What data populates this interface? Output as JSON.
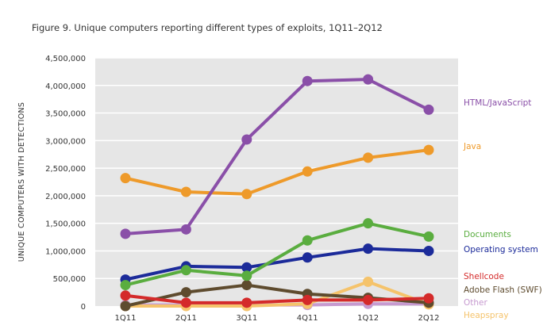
{
  "chart_data": {
    "type": "line",
    "title": "Figure 9. Unique computers reporting different types of exploits, 1Q11–2Q12",
    "xlabel": "",
    "ylabel": "UNIQUE COMPUTERS WITH DETECTIONS",
    "categories": [
      "1Q11",
      "2Q11",
      "3Q11",
      "4Q11",
      "1Q12",
      "2Q12"
    ],
    "ylim": [
      0,
      4500000
    ],
    "yticks": [
      0,
      500000,
      1000000,
      1500000,
      2000000,
      2500000,
      3000000,
      3500000,
      4000000,
      4500000
    ],
    "ytick_labels": [
      "0",
      "500,000",
      "1,000,000",
      "1,500,000",
      "2,000,000",
      "2,500,000",
      "3,000,000",
      "3,500,000",
      "4,000,000",
      "4,500,000"
    ],
    "grid": true,
    "legend": "right, labels beside line ends",
    "series": [
      {
        "name": "Other",
        "color": "#c79ad0",
        "values": [
          20000,
          20000,
          20000,
          20000,
          40000,
          40000
        ]
      },
      {
        "name": "Heapspray",
        "color": "#f5c36b",
        "values": [
          0,
          0,
          0,
          40000,
          440000,
          30000
        ]
      },
      {
        "name": "Adobe Flash (SWF)",
        "color": "#5e4b2e",
        "values": [
          0,
          250000,
          380000,
          220000,
          150000,
          60000
        ]
      },
      {
        "name": "Shellcode",
        "color": "#d42a2a",
        "values": [
          190000,
          60000,
          60000,
          110000,
          110000,
          140000
        ]
      },
      {
        "name": "Operating system",
        "color": "#1c2b9a",
        "values": [
          480000,
          720000,
          700000,
          880000,
          1040000,
          1000000
        ]
      },
      {
        "name": "Documents",
        "color": "#5aad3f",
        "values": [
          380000,
          650000,
          550000,
          1190000,
          1500000,
          1260000
        ]
      },
      {
        "name": "Java",
        "color": "#ee9a2a",
        "values": [
          2320000,
          2070000,
          2030000,
          2440000,
          2690000,
          2830000
        ]
      },
      {
        "name": "HTML/JavaScript",
        "color": "#8a4fa8",
        "values": [
          1310000,
          1390000,
          3020000,
          4080000,
          4110000,
          3560000
        ]
      }
    ],
    "label_order": [
      "HTML/JavaScript",
      "Java",
      "Documents",
      "Operating system",
      "Shellcode",
      "Adobe Flash (SWF)",
      "Other",
      "Heapspray"
    ]
  }
}
